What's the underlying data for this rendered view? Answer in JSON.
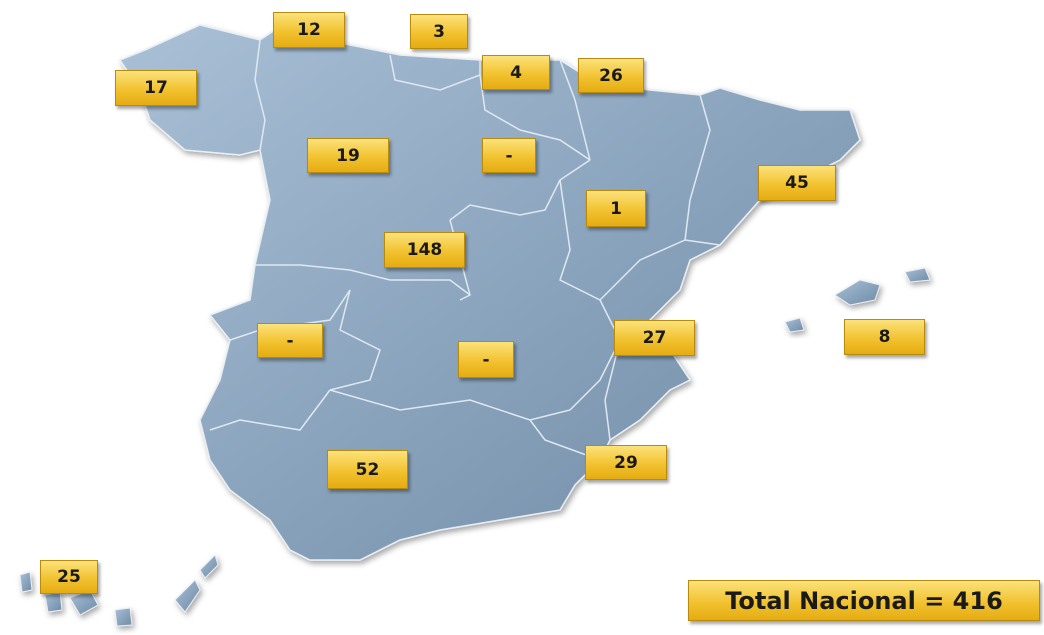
{
  "labels": [
    12,
    3,
    4,
    26,
    17,
    19,
    "-",
    45,
    1,
    148,
    27,
    8,
    "-",
    "-",
    29,
    52,
    25
  ],
  "total": "Total Nacional = 416"
}
